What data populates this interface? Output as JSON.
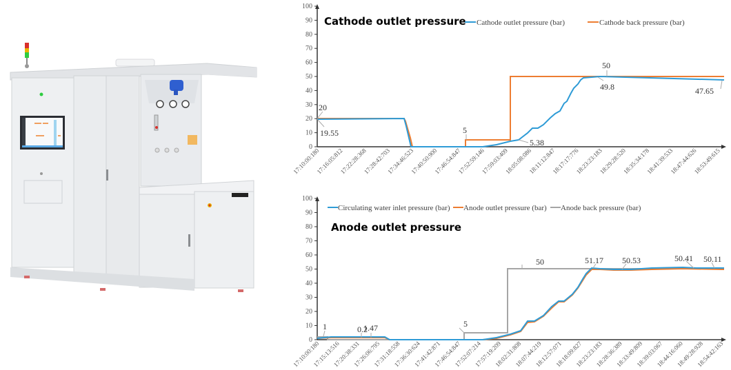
{
  "machine_image": {
    "description": "Electrolyzer test station cabinet with HMI touchscreen, signal tower light, pressure gauges and side workbench",
    "colors": {
      "body": "#eceef0",
      "panel": "#e4e6e9",
      "accent_blue": "#2f5fd0",
      "light_green": "#2ecc40",
      "light_red": "#d9302c",
      "light_yellow": "#e8b400"
    }
  },
  "chart_data": [
    {
      "type": "line",
      "title": "Cathode outlet pressure",
      "xlabel": "",
      "ylabel": "",
      "ylim": [
        0,
        100
      ],
      "yticks": [
        0,
        10,
        20,
        30,
        40,
        50,
        60,
        70,
        80,
        90,
        100
      ],
      "grid": false,
      "legend_position": "top-right",
      "categories": [
        "17:10:00:180",
        "17:16:05:812",
        "17:22:28:368",
        "17:28:42:703",
        "17:34:46:523",
        "17:40:50:900",
        "17:46:54:847",
        "17:52:59:146",
        "17:59:03:409",
        "18:05:08:086",
        "18:11:12:847",
        "18:17:17:776",
        "18:23:23:183",
        "18:29:28:520",
        "18:35:34:178",
        "18:41:39:533",
        "18:47:44:626",
        "18:53:49:615"
      ],
      "series": [
        {
          "name": "Cathode outlet pressure (bar)",
          "color": "#2e9bd6",
          "values": [
            19.55,
            19.6,
            19.8,
            0,
            0,
            0,
            0,
            0,
            2,
            5.38,
            15,
            25,
            49.8,
            49.3,
            48.9,
            48.4,
            48.0,
            47.65
          ]
        },
        {
          "name": "Cathode back pressure (bar)",
          "color": "#ed7d31",
          "values": [
            20,
            20,
            20,
            0,
            0,
            0,
            0,
            5,
            5,
            50,
            50,
            50,
            50,
            50,
            50,
            50,
            50,
            50
          ]
        }
      ],
      "annotations": [
        {
          "label": "20",
          "series": "Cathode back pressure (bar)",
          "x": "17:10:00:180"
        },
        {
          "label": "19.55",
          "series": "Cathode outlet pressure (bar)",
          "x": "17:10:00:180"
        },
        {
          "label": "5",
          "series": "Cathode back pressure (bar)",
          "x": "17:52:59:146"
        },
        {
          "label": "5.38",
          "series": "Cathode outlet pressure (bar)",
          "x": "18:05:08:086"
        },
        {
          "label": "50",
          "series": "Cathode back pressure (bar)",
          "x": "18:23:23:183"
        },
        {
          "label": "49.8",
          "series": "Cathode outlet pressure (bar)",
          "x": "18:23:23:183"
        },
        {
          "label": "47.65",
          "series": "Cathode outlet pressure (bar)",
          "x": "18:53:49:615"
        }
      ]
    },
    {
      "type": "line",
      "title": "Anode outlet pressure",
      "xlabel": "",
      "ylabel": "",
      "ylim": [
        0,
        100
      ],
      "yticks": [
        0,
        10,
        20,
        30,
        40,
        50,
        60,
        70,
        80,
        90,
        100
      ],
      "grid": false,
      "legend_position": "top",
      "categories": [
        "17:10:00:180",
        "17:15:13:516",
        "17:20:38:331",
        "17:26:06:795",
        "17:31:18:558",
        "17:36:30:624",
        "17:41:42:871",
        "17:46:54:847",
        "17:52:07:214",
        "17:57:19:209",
        "18:02:31:808",
        "18:07:44:219",
        "18:12:57:071",
        "18:18:09:827",
        "18:23:23:183",
        "18:28:36:389",
        "18:33:49:809",
        "18:39:03:067",
        "18:44:16:060",
        "18:49:28:928",
        "18:54:42:163"
      ],
      "series": [
        {
          "name": "Circulating water inlet pressure (bar)",
          "color": "#2e9bd6",
          "values": [
            0.5,
            1.2,
            1.3,
            1.47,
            0,
            0,
            0,
            0,
            0,
            0.5,
            4,
            14,
            17,
            27,
            51.17,
            50.5,
            50.53,
            50.7,
            50.8,
            50.41,
            50.11
          ]
        },
        {
          "name": "Anode outlet pressure (bar)",
          "color": "#ed7d31",
          "values": [
            0.5,
            1.0,
            0.2,
            1.47,
            0,
            0,
            0,
            0,
            0,
            0.3,
            3.5,
            13,
            16,
            26,
            50.5,
            49.8,
            49.6,
            50,
            50.2,
            50.1,
            49.9
          ]
        },
        {
          "name": "Anode back pressure (bar)",
          "color": "#a5a5a5",
          "values": [
            1,
            1,
            0,
            0,
            0,
            0,
            0,
            0,
            5,
            5,
            50,
            50,
            50,
            50,
            50,
            50,
            50,
            50,
            50,
            50,
            50
          ]
        }
      ],
      "annotations": [
        {
          "label": "1",
          "series": "Anode back pressure (bar)",
          "x": "17:10:00:180"
        },
        {
          "label": "0.2",
          "series": "Anode outlet pressure (bar)",
          "x": "17:20:38:331"
        },
        {
          "label": "1.47",
          "series": "Anode outlet pressure (bar)",
          "x": "17:26:06:795"
        },
        {
          "label": "5",
          "series": "Anode back pressure (bar)",
          "x": "17:52:07:214"
        },
        {
          "label": "50",
          "series": "Anode back pressure (bar)",
          "x": "18:07:44:219"
        },
        {
          "label": "51.17",
          "series": "Circulating water inlet pressure (bar)",
          "x": "18:23:23:183"
        },
        {
          "label": "50.53",
          "series": "Circulating water inlet pressure (bar)",
          "x": "18:33:49:809"
        },
        {
          "label": "50.41",
          "series": "Circulating water inlet pressure (bar)",
          "x": "18:49:28:928"
        },
        {
          "label": "50.11",
          "series": "Circulating water inlet pressure (bar)",
          "x": "18:54:42:163"
        }
      ]
    }
  ]
}
